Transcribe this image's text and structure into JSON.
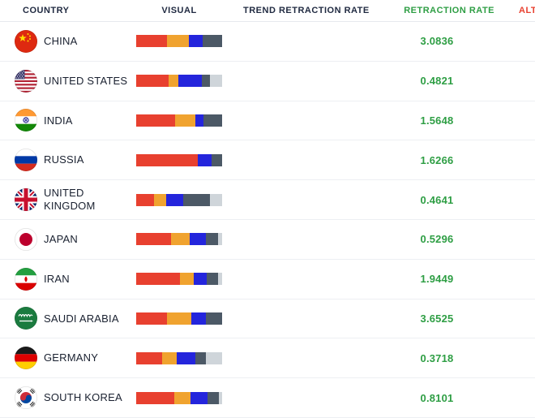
{
  "table": {
    "columns": [
      "COUNTRY",
      "VISUAL",
      "TREND RETRACTION RATE",
      "RETRACTION RATE",
      "ALT"
    ],
    "colors": {
      "red": "#E8402F",
      "orange": "#F0A32F",
      "blue": "#2425DC",
      "dark": "#4C5966",
      "light": "#CFD5DA",
      "rate_green": "#2E9E44",
      "header_dark": "#1F2940",
      "alt_red": "#E8402F"
    },
    "rows": [
      {
        "country": "CHINA",
        "flag": "cn",
        "rate": "3.0836",
        "segments": [
          {
            "color": "red",
            "pct": 36
          },
          {
            "color": "orange",
            "pct": 25
          },
          {
            "color": "blue",
            "pct": 16
          },
          {
            "color": "dark",
            "pct": 23
          }
        ]
      },
      {
        "country": "UNITED STATES",
        "flag": "us",
        "rate": "0.4821",
        "segments": [
          {
            "color": "red",
            "pct": 38
          },
          {
            "color": "orange",
            "pct": 11
          },
          {
            "color": "blue",
            "pct": 27
          },
          {
            "color": "dark",
            "pct": 10
          },
          {
            "color": "light",
            "pct": 14
          }
        ]
      },
      {
        "country": "INDIA",
        "flag": "in",
        "rate": "1.5648",
        "segments": [
          {
            "color": "red",
            "pct": 45
          },
          {
            "color": "orange",
            "pct": 24
          },
          {
            "color": "blue",
            "pct": 9
          },
          {
            "color": "dark",
            "pct": 22
          }
        ]
      },
      {
        "country": "RUSSIA",
        "flag": "ru",
        "rate": "1.6266",
        "segments": [
          {
            "color": "red",
            "pct": 72
          },
          {
            "color": "blue",
            "pct": 16
          },
          {
            "color": "dark",
            "pct": 12
          }
        ]
      },
      {
        "country": "UNITED KINGDOM",
        "flag": "gb",
        "rate": "0.4641",
        "segments": [
          {
            "color": "red",
            "pct": 21
          },
          {
            "color": "orange",
            "pct": 14
          },
          {
            "color": "blue",
            "pct": 20
          },
          {
            "color": "dark",
            "pct": 31
          },
          {
            "color": "light",
            "pct": 14
          }
        ]
      },
      {
        "country": "JAPAN",
        "flag": "jp",
        "rate": "0.5296",
        "segments": [
          {
            "color": "red",
            "pct": 41
          },
          {
            "color": "orange",
            "pct": 21
          },
          {
            "color": "blue",
            "pct": 19
          },
          {
            "color": "dark",
            "pct": 14
          },
          {
            "color": "light",
            "pct": 5
          }
        ]
      },
      {
        "country": "IRAN",
        "flag": "ir",
        "rate": "1.9449",
        "segments": [
          {
            "color": "red",
            "pct": 51
          },
          {
            "color": "orange",
            "pct": 16
          },
          {
            "color": "blue",
            "pct": 15
          },
          {
            "color": "dark",
            "pct": 13
          },
          {
            "color": "light",
            "pct": 5
          }
        ]
      },
      {
        "country": "SAUDI ARABIA",
        "flag": "sa",
        "rate": "3.6525",
        "segments": [
          {
            "color": "red",
            "pct": 36
          },
          {
            "color": "orange",
            "pct": 28
          },
          {
            "color": "blue",
            "pct": 17
          },
          {
            "color": "dark",
            "pct": 19
          }
        ]
      },
      {
        "country": "GERMANY",
        "flag": "de",
        "rate": "0.3718",
        "segments": [
          {
            "color": "red",
            "pct": 30
          },
          {
            "color": "orange",
            "pct": 17
          },
          {
            "color": "blue",
            "pct": 22
          },
          {
            "color": "dark",
            "pct": 12
          },
          {
            "color": "light",
            "pct": 19
          }
        ]
      },
      {
        "country": "SOUTH KOREA",
        "flag": "kr",
        "rate": "0.8101",
        "segments": [
          {
            "color": "red",
            "pct": 44
          },
          {
            "color": "orange",
            "pct": 19
          },
          {
            "color": "blue",
            "pct": 20
          },
          {
            "color": "dark",
            "pct": 13
          },
          {
            "color": "light",
            "pct": 4
          }
        ]
      }
    ]
  }
}
